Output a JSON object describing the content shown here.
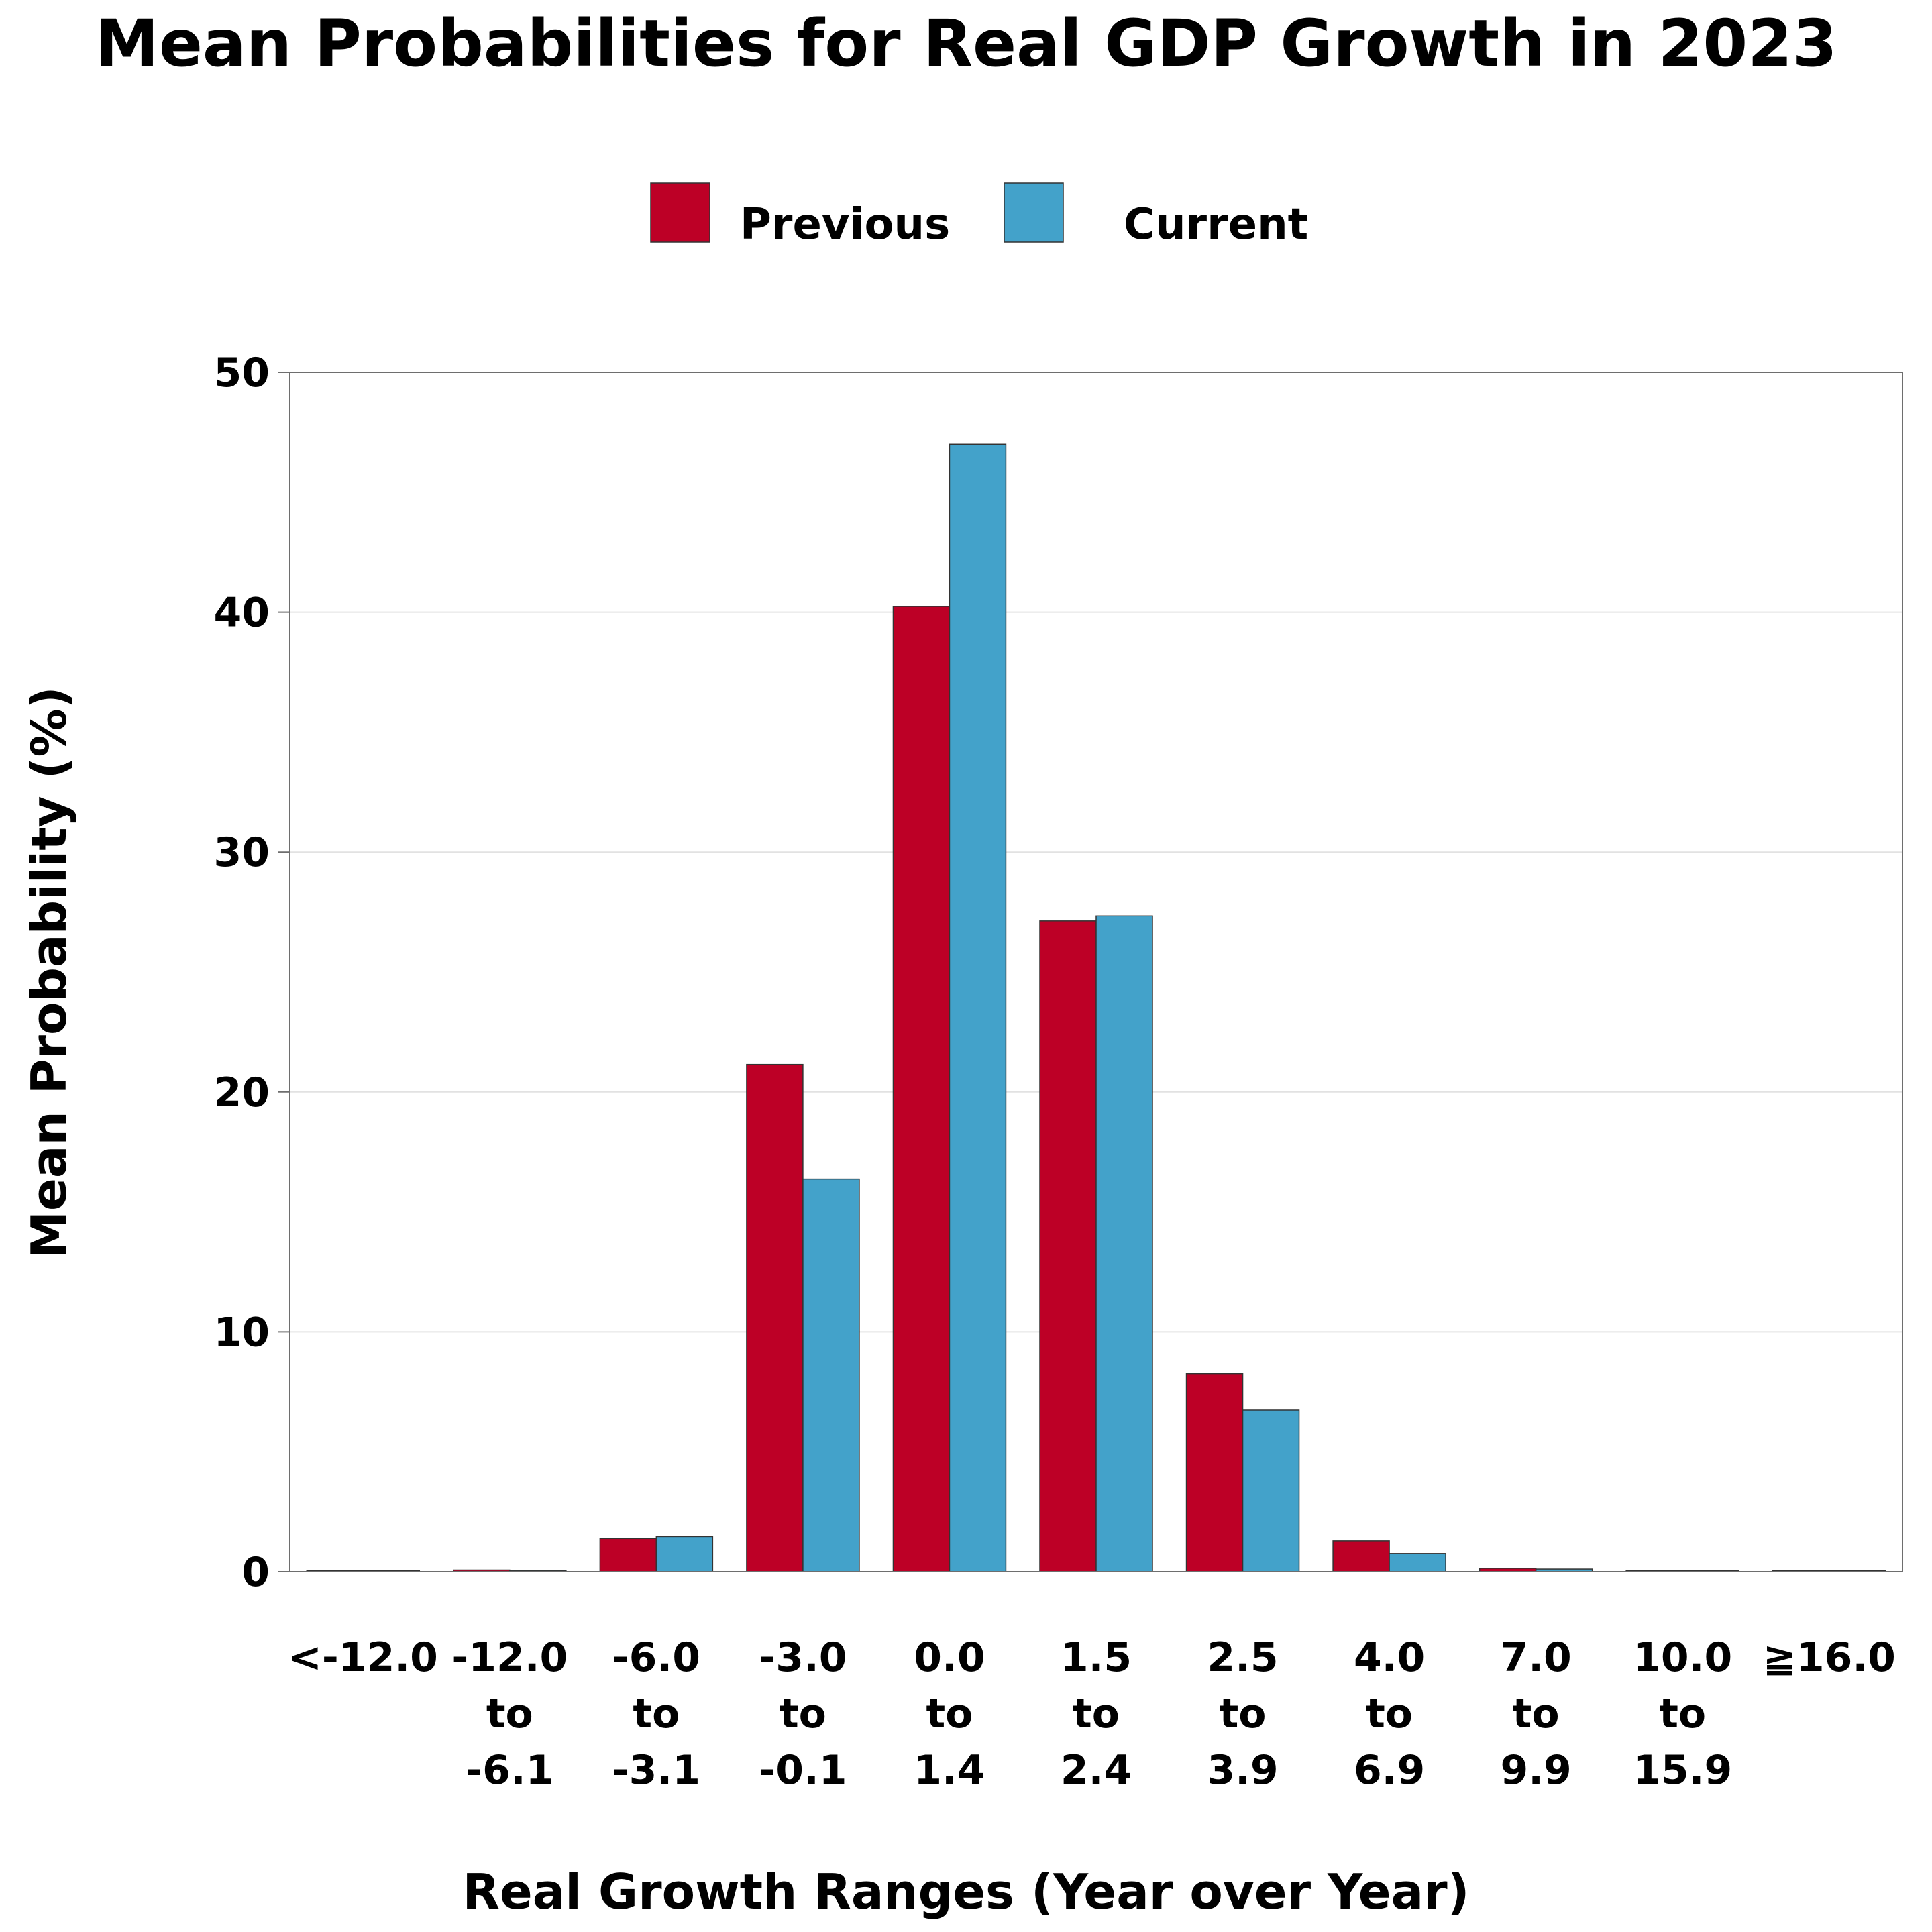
{
  "chart_data": {
    "type": "bar",
    "title": "Mean Probabilities for Real GDP Growth in 2023",
    "xlabel": "Real Growth Ranges (Year over Year)",
    "ylabel": "Mean Probability (%)",
    "ylim": [
      0,
      50
    ],
    "yticks": [
      0,
      10,
      20,
      30,
      40,
      50
    ],
    "grid": true,
    "legend_position": "top-center",
    "categories": [
      [
        "<-12.0"
      ],
      [
        "-12.0",
        "to",
        "-6.1"
      ],
      [
        "-6.0",
        "to",
        "-3.1"
      ],
      [
        "-3.0",
        "to",
        "-0.1"
      ],
      [
        "0.0",
        "to",
        "1.4"
      ],
      [
        "1.5",
        "to",
        "2.4"
      ],
      [
        "2.5",
        "to",
        "3.9"
      ],
      [
        "4.0",
        "to",
        "6.9"
      ],
      [
        "7.0",
        "to",
        "9.9"
      ],
      [
        "10.0",
        "to",
        "15.9"
      ],
      [
        "≧16.0"
      ]
    ],
    "series": [
      {
        "name": "Previous",
        "color": "#bd0026",
        "values": [
          0.0,
          0.07,
          1.39,
          21.15,
          40.24,
          27.13,
          8.26,
          1.29,
          0.14,
          0.02,
          0.0
        ]
      },
      {
        "name": "Current",
        "color": "#43a2ca",
        "values": [
          0.02,
          0.05,
          1.47,
          16.37,
          47.0,
          27.34,
          6.74,
          0.76,
          0.11,
          0.02,
          0.0
        ]
      }
    ]
  }
}
